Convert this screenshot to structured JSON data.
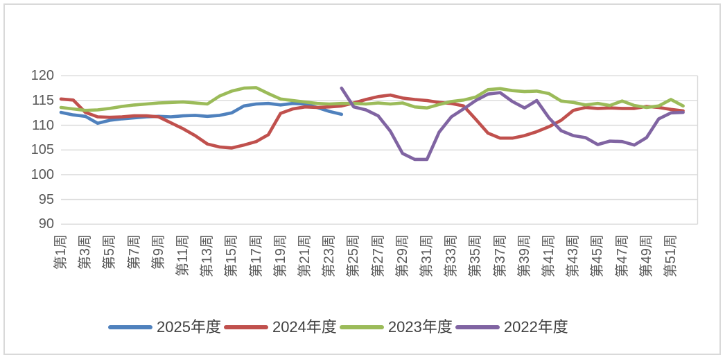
{
  "chart": {
    "background_color": "#ffffff",
    "frame_border_color": "#d9d9d9",
    "gridline_color": "#d9d9d9",
    "axis_label_color": "#595959",
    "legend_label_color": "#404040"
  },
  "chart_data": {
    "type": "line",
    "title": "",
    "xlabel": "",
    "ylabel": "",
    "ylim": [
      90,
      120
    ],
    "y_ticks": [
      90,
      95,
      100,
      105,
      110,
      115,
      120
    ],
    "grid": "horizontal",
    "legend_position": "bottom",
    "x_tick_labels": [
      "第1周",
      "第3周",
      "第5周",
      "第7周",
      "第9周",
      "第11周",
      "第13周",
      "第15周",
      "第17周",
      "第19周",
      "第21周",
      "第23周",
      "第25周",
      "第27周",
      "第29周",
      "第31周",
      "第33周",
      "第35周",
      "第37周",
      "第39周",
      "第41周",
      "第43周",
      "第45周",
      "第47周",
      "第49周",
      "第51周"
    ],
    "x_weeks_range": [
      1,
      52
    ],
    "series": [
      {
        "name": "2025年度",
        "color": "#4F81BD",
        "start_week": 1,
        "values": [
          112.6,
          112.1,
          111.8,
          110.4,
          111.0,
          111.3,
          111.5,
          111.7,
          111.8,
          111.7,
          111.9,
          112.0,
          111.8,
          112.0,
          112.5,
          113.9,
          114.3,
          114.4,
          114.1,
          114.4,
          114.3,
          113.6,
          112.8,
          112.2
        ]
      },
      {
        "name": "2024年度",
        "color": "#C0504D",
        "start_week": 1,
        "values": [
          115.3,
          115.1,
          112.6,
          111.7,
          111.6,
          111.7,
          111.9,
          111.9,
          111.7,
          110.5,
          109.3,
          107.9,
          106.2,
          105.6,
          105.4,
          106.0,
          106.7,
          108.1,
          112.4,
          113.3,
          113.7,
          113.6,
          113.7,
          113.9,
          114.5,
          115.2,
          115.8,
          116.1,
          115.5,
          115.2,
          115.0,
          114.6,
          114.4,
          113.9,
          111.2,
          108.4,
          107.4,
          107.4,
          107.9,
          108.7,
          109.7,
          111.0,
          113.0,
          113.6,
          113.4,
          113.5,
          113.4,
          113.4,
          113.8,
          113.6,
          113.2,
          112.9
        ]
      },
      {
        "name": "2023年度",
        "color": "#9BBB59",
        "start_week": 1,
        "values": [
          113.6,
          113.3,
          113.0,
          113.1,
          113.4,
          113.8,
          114.1,
          114.3,
          114.5,
          114.6,
          114.7,
          114.5,
          114.3,
          115.9,
          116.9,
          117.5,
          117.6,
          116.4,
          115.3,
          115.0,
          114.7,
          114.4,
          114.3,
          114.4,
          114.4,
          114.3,
          114.5,
          114.3,
          114.5,
          113.7,
          113.5,
          114.2,
          114.8,
          115.1,
          115.7,
          117.2,
          117.4,
          117.0,
          116.8,
          116.9,
          116.4,
          114.9,
          114.6,
          114.1,
          114.4,
          114.0,
          114.9,
          114.0,
          113.6,
          113.9,
          115.2,
          113.9
        ]
      },
      {
        "name": "2022年度",
        "color": "#8064A2",
        "start_week": 24,
        "values": [
          117.5,
          113.7,
          113.1,
          111.9,
          108.8,
          104.3,
          103.1,
          103.1,
          108.6,
          111.7,
          113.3,
          115.0,
          116.3,
          116.6,
          114.8,
          113.5,
          115.0,
          111.5,
          108.9,
          107.9,
          107.5,
          106.1,
          106.8,
          106.7,
          106.0,
          107.5,
          111.3,
          112.5,
          112.6
        ]
      }
    ]
  }
}
